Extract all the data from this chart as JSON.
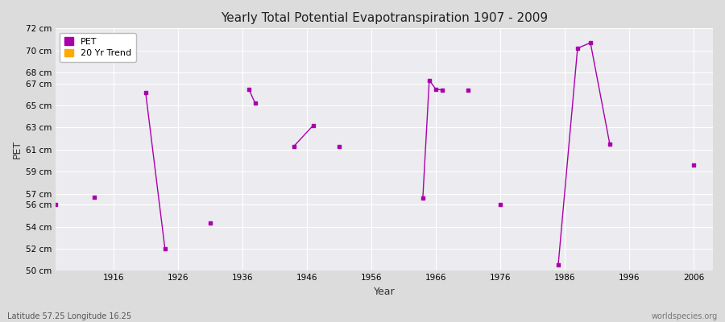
{
  "title": "Yearly Total Potential Evapotranspiration 1907 - 2009",
  "xlabel": "Year",
  "ylabel": "PET",
  "subtitle": "Latitude 57.25 Longitude 16.25",
  "watermark": "worldspecies.org",
  "background_color": "#dcdcdc",
  "plot_bg_color": "#ebebf0",
  "grid_color": "#ffffff",
  "xlim": [
    1907,
    2009
  ],
  "ylim": [
    50,
    72
  ],
  "ytick_labels": [
    "50 cm",
    "52 cm",
    "54 cm",
    "56 cm",
    "57 cm",
    "59 cm",
    "61 cm",
    "63 cm",
    "65 cm",
    "67 cm",
    "68 cm",
    "70 cm",
    "72 cm"
  ],
  "ytick_values": [
    50,
    52,
    54,
    56,
    57,
    59,
    61,
    63,
    65,
    67,
    68,
    70,
    72
  ],
  "xtick_values": [
    1916,
    1926,
    1936,
    1946,
    1956,
    1966,
    1976,
    1986,
    1996,
    2006
  ],
  "pet_color": "#aa00aa",
  "trend_color": "#ffaa00",
  "pet_data": [
    [
      1907,
      56.0
    ],
    [
      1913,
      56.7
    ],
    [
      1921,
      66.2
    ],
    [
      1924,
      52.0
    ],
    [
      1931,
      54.3
    ],
    [
      1937,
      66.5
    ],
    [
      1938,
      65.2
    ],
    [
      1944,
      61.3
    ],
    [
      1947,
      63.2
    ],
    [
      1951,
      61.3
    ],
    [
      1964,
      56.6
    ],
    [
      1965,
      67.3
    ],
    [
      1966,
      66.5
    ],
    [
      1967,
      66.4
    ],
    [
      1971,
      66.4
    ],
    [
      1976,
      56.0
    ],
    [
      1985,
      50.5
    ],
    [
      1988,
      70.2
    ],
    [
      1990,
      70.7
    ],
    [
      1993,
      61.5
    ],
    [
      2006,
      59.6
    ]
  ],
  "connect_threshold": 3
}
